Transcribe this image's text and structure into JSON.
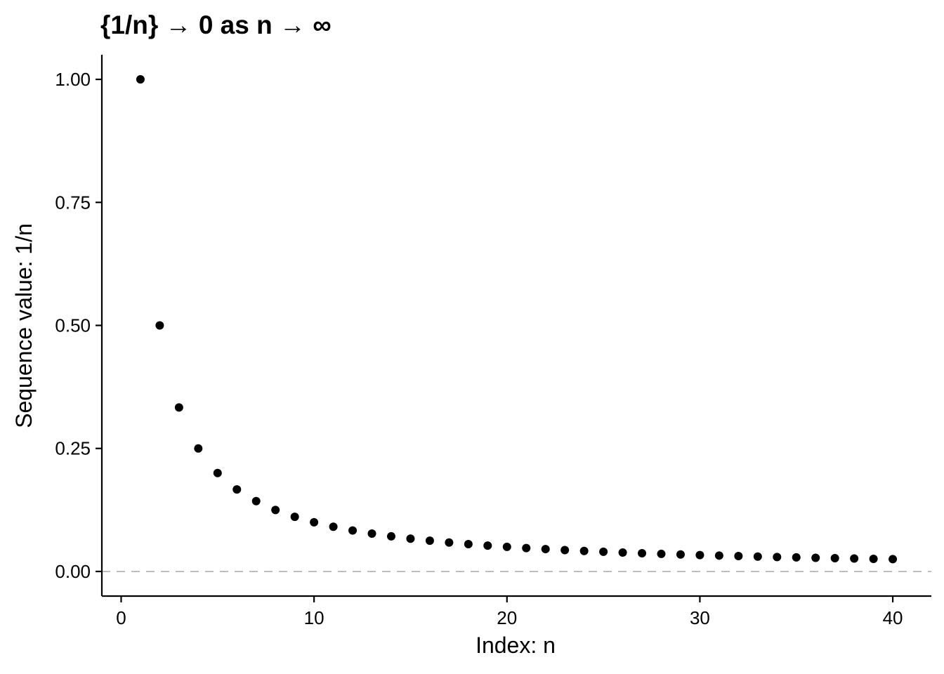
{
  "chart_data": {
    "type": "scatter",
    "title": "{1/n} → 0 as n → ∞",
    "xlabel": "Index: n",
    "ylabel": "Sequence value: 1/n",
    "xlim": [
      -1,
      42
    ],
    "ylim": [
      -0.05,
      1.05
    ],
    "xticks": [
      0,
      10,
      20,
      30,
      40
    ],
    "xtick_labels": [
      "0",
      "10",
      "20",
      "30",
      "40"
    ],
    "yticks": [
      0,
      0.25,
      0.5,
      0.75,
      1
    ],
    "ytick_labels": [
      "0.00",
      "0.25",
      "0.50",
      "0.75",
      "1.00"
    ],
    "reference_line": {
      "y": 0,
      "style": "dashed",
      "color": "#bdbdbd"
    },
    "grid": false,
    "point_color": "#000000",
    "x": [
      1,
      2,
      3,
      4,
      5,
      6,
      7,
      8,
      9,
      10,
      11,
      12,
      13,
      14,
      15,
      16,
      17,
      18,
      19,
      20,
      21,
      22,
      23,
      24,
      25,
      26,
      27,
      28,
      29,
      30,
      31,
      32,
      33,
      34,
      35,
      36,
      37,
      38,
      39,
      40
    ],
    "y": [
      1,
      0.5,
      0.3333,
      0.25,
      0.2,
      0.1667,
      0.1429,
      0.125,
      0.1111,
      0.1,
      0.0909,
      0.0833,
      0.0769,
      0.0714,
      0.0667,
      0.0625,
      0.0588,
      0.0556,
      0.0526,
      0.05,
      0.0476,
      0.0455,
      0.0435,
      0.0417,
      0.04,
      0.0385,
      0.037,
      0.0357,
      0.0345,
      0.0333,
      0.0323,
      0.0313,
      0.0303,
      0.0294,
      0.0286,
      0.0278,
      0.027,
      0.0263,
      0.0256,
      0.025
    ]
  }
}
